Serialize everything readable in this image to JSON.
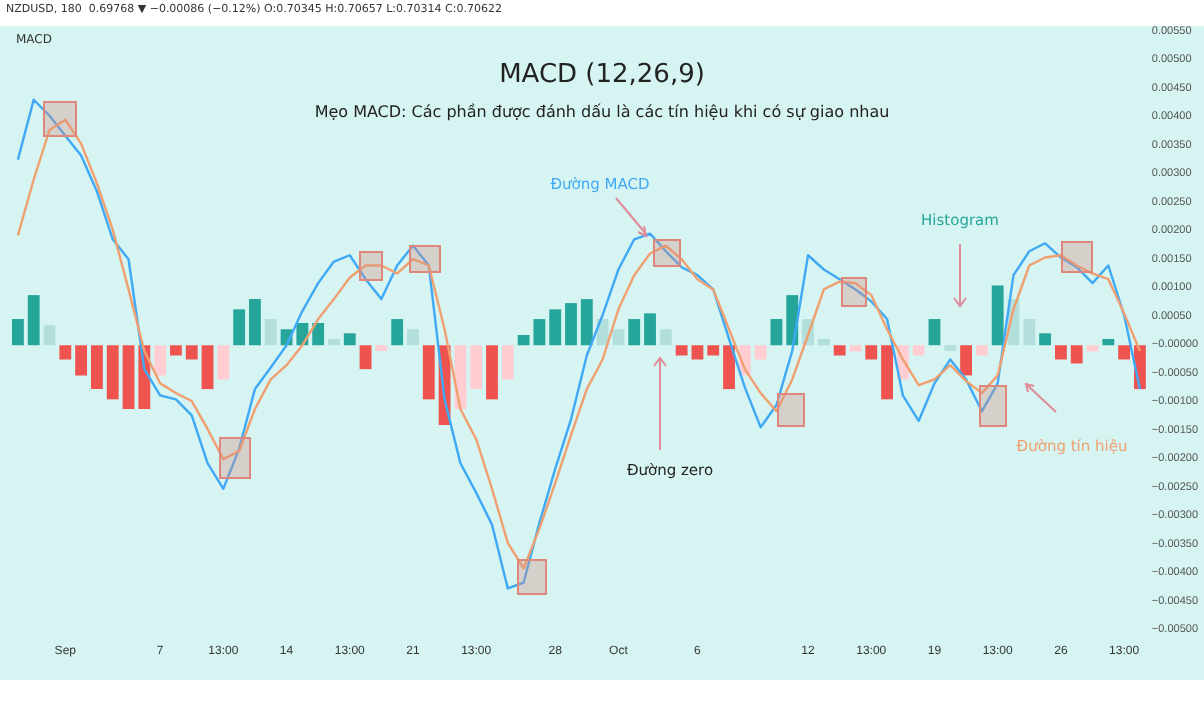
{
  "chart_data": {
    "type": "line",
    "title": "MACD (12,26,9)",
    "subtitle": "Mẹo MACD: Các phần được đánh dấu là các tín hiệu khi có sự giao nhau",
    "categories": [
      null,
      null,
      null,
      "Sep",
      null,
      null,
      null,
      null,
      null,
      "7",
      null,
      null,
      null,
      "13:00",
      null,
      null,
      null,
      "14",
      null,
      null,
      null,
      "13:00",
      null,
      null,
      null,
      "21",
      null,
      null,
      null,
      "13:00",
      null,
      null,
      null,
      null,
      "28",
      null,
      null,
      null,
      "Oct",
      null,
      null,
      null,
      null,
      "6",
      null,
      null,
      null,
      null,
      null,
      null,
      "12",
      null,
      null,
      null,
      "13:00",
      null,
      null,
      null,
      "19",
      null,
      null,
      null,
      "13:00",
      null,
      null,
      null,
      "26",
      null,
      null,
      null,
      "13:00",
      null
    ],
    "series": [
      {
        "name": "Histogram",
        "type": "bar",
        "values": [
          0.00046,
          0.00088,
          0.00035,
          -0.00025,
          -0.00053,
          -0.00077,
          -0.00095,
          -0.00112,
          -0.00112,
          -0.00053,
          -0.00018,
          -0.00025,
          -0.00077,
          -0.0006,
          0.00063,
          0.00081,
          0.00046,
          0.00028,
          0.00039,
          0.00039,
          0.00011,
          0.00021,
          -0.00042,
          -0.0001,
          0.00046,
          0.00028,
          -0.00095,
          -0.0014,
          -0.00112,
          -0.00077,
          -0.00095,
          -0.0006,
          0.00018,
          0.00046,
          0.00063,
          0.00074,
          0.00081,
          0.00046,
          0.00028,
          0.00046,
          0.00056,
          0.00028,
          -0.00018,
          -0.00025,
          -0.00018,
          -0.00077,
          -0.00053,
          -0.00025,
          0.00046,
          0.00088,
          0.00046,
          0.00011,
          -0.00018,
          -0.00011,
          -0.00025,
          -0.00095,
          -0.0006,
          -0.00018,
          0.00046,
          -0.0001,
          -0.00053,
          -0.00018,
          0.00105,
          0.00081,
          0.00046,
          0.00021,
          -0.00025,
          -0.00032,
          -0.00011,
          0.00011,
          -0.00025,
          -0.00077
        ],
        "colors": [
          "#26a69a",
          "#26a69a",
          "#b2dfdb",
          "#ef5350",
          "#ef5350",
          "#ef5350",
          "#ef5350",
          "#ef5350",
          "#ef5350",
          "#ffcdd2",
          "#ef5350",
          "#ef5350",
          "#ef5350",
          "#ffcdd2",
          "#26a69a",
          "#26a69a",
          "#b2dfdb",
          "#26a69a",
          "#26a69a",
          "#26a69a",
          "#b2dfdb",
          "#26a69a",
          "#ef5350",
          "#ffcdd2",
          "#26a69a",
          "#b2dfdb",
          "#ef5350",
          "#ef5350",
          "#ffcdd2",
          "#ffcdd2",
          "#ef5350",
          "#ffcdd2",
          "#26a69a",
          "#26a69a",
          "#26a69a",
          "#26a69a",
          "#26a69a",
          "#b2dfdb",
          "#b2dfdb",
          "#26a69a",
          "#26a69a",
          "#b2dfdb",
          "#ef5350",
          "#ef5350",
          "#ef5350",
          "#ef5350",
          "#ffcdd2",
          "#ffcdd2",
          "#26a69a",
          "#26a69a",
          "#b2dfdb",
          "#b2dfdb",
          "#ef5350",
          "#ffcdd2",
          "#ef5350",
          "#ef5350",
          "#ffcdd2",
          "#ffcdd2",
          "#26a69a",
          "#b2dfdb",
          "#ef5350",
          "#ffcdd2",
          "#26a69a",
          "#b2dfdb",
          "#b2dfdb",
          "#26a69a",
          "#ef5350",
          "#ef5350",
          "#ffcdd2",
          "#26a69a",
          "#ef5350",
          "#ef5350"
        ]
      },
      {
        "name": "Đường MACD",
        "color": "#3fa9f5",
        "values": [
          0.00326,
          0.00431,
          0.00403,
          0.00368,
          0.00333,
          0.0027,
          0.00186,
          0.00151,
          -0.00042,
          -0.00088,
          -0.00095,
          -0.00123,
          -0.00207,
          -0.00252,
          -0.00182,
          -0.00077,
          -0.00039,
          0,
          0.0006,
          0.00109,
          0.00147,
          0.00158,
          0.00116,
          0.00081,
          0.0014,
          0.00175,
          0.0014,
          -0.00095,
          -0.00207,
          -0.00259,
          -0.00315,
          -0.00427,
          -0.00417,
          -0.00312,
          -0.00217,
          -0.0013,
          -0.00018,
          0.00053,
          0.00133,
          0.00186,
          0.00196,
          0.00165,
          0.00137,
          0.00123,
          0.00098,
          0.00011,
          -0.00074,
          -0.00144,
          -0.00105,
          -0.0001,
          0.00158,
          0.00133,
          0.00116,
          0.00098,
          0.00077,
          0.00046,
          -0.00088,
          -0.00133,
          -0.00067,
          -0.00025,
          -0.0006,
          -0.00116,
          -0.00067,
          0.00123,
          0.00165,
          0.00179,
          0.00154,
          0.00137,
          0.00109,
          0.0014,
          0.00053,
          -0.00077
        ]
      },
      {
        "name": "Đường tín hiệu",
        "color": "#f0a070",
        "values": [
          0.00193,
          0.00291,
          0.00378,
          0.00396,
          0.00354,
          0.00284,
          0.00203,
          0.00098,
          -0.0001,
          -0.00067,
          -0.00084,
          -0.00098,
          -0.00147,
          -0.002,
          -0.00186,
          -0.00112,
          -0.0006,
          -0.00035,
          0,
          0.00046,
          0.00081,
          0.00119,
          0.0014,
          0.0014,
          0.00126,
          0.00151,
          0.0014,
          0.00028,
          -0.00112,
          -0.00165,
          -0.00252,
          -0.00347,
          -0.00392,
          -0.00322,
          -0.00242,
          -0.00158,
          -0.00077,
          -0.00025,
          0.00063,
          0.00123,
          0.00161,
          0.00175,
          0.00151,
          0.00116,
          0.00098,
          0.00028,
          -0.00042,
          -0.00084,
          -0.00116,
          -0.0006,
          0.00018,
          0.00098,
          0.00112,
          0.00109,
          0.00088,
          0.00028,
          -0.00025,
          -0.0007,
          -0.0006,
          -0.00035,
          -0.00063,
          -0.00084,
          -0.00053,
          0.00063,
          0.0014,
          0.00154,
          0.00158,
          0.0014,
          0.00126,
          0.00116,
          0.00056,
          -0.0001
        ]
      }
    ],
    "ylim": [
      -0.005,
      0.0055
    ],
    "yticks": [
      {
        "value": -0.005,
        "label": "−0.00500"
      },
      {
        "value": -0.0045,
        "label": "−0.00450"
      },
      {
        "value": -0.004,
        "label": "−0.00400"
      },
      {
        "value": -0.0035,
        "label": "−0.00350"
      },
      {
        "value": -0.003,
        "label": "−0.00300"
      },
      {
        "value": -0.0025,
        "label": "−0.00250"
      },
      {
        "value": -0.002,
        "label": "−0.00200"
      },
      {
        "value": -0.0015,
        "label": "−0.00150"
      },
      {
        "value": -0.001,
        "label": "−0.00100"
      },
      {
        "value": -0.0005,
        "label": "−0.00050"
      },
      {
        "value": 0,
        "label": "−0.00000"
      },
      {
        "value": 0.0005,
        "label": "0.00050"
      },
      {
        "value": 0.001,
        "label": "0.00100"
      },
      {
        "value": 0.0015,
        "label": "0.00150"
      },
      {
        "value": 0.002,
        "label": "0.00200"
      },
      {
        "value": 0.0025,
        "label": "0.00250"
      },
      {
        "value": 0.003,
        "label": "0.00300"
      },
      {
        "value": 0.0035,
        "label": "0.00350"
      },
      {
        "value": 0.004,
        "label": "0.00400"
      },
      {
        "value": 0.0045,
        "label": "0.00450"
      },
      {
        "value": 0.005,
        "label": "0.00500"
      },
      {
        "value": 0.0055,
        "label": "0.00550"
      }
    ],
    "marker": "none",
    "annotations": [
      "NZDUSD, 180  0.69768 ▼ −0.00086 (−0.12%) O:0.70345 H:0.70657 L:0.70314 C:0.70622",
      "MACD",
      "Đường zero"
    ]
  }
}
